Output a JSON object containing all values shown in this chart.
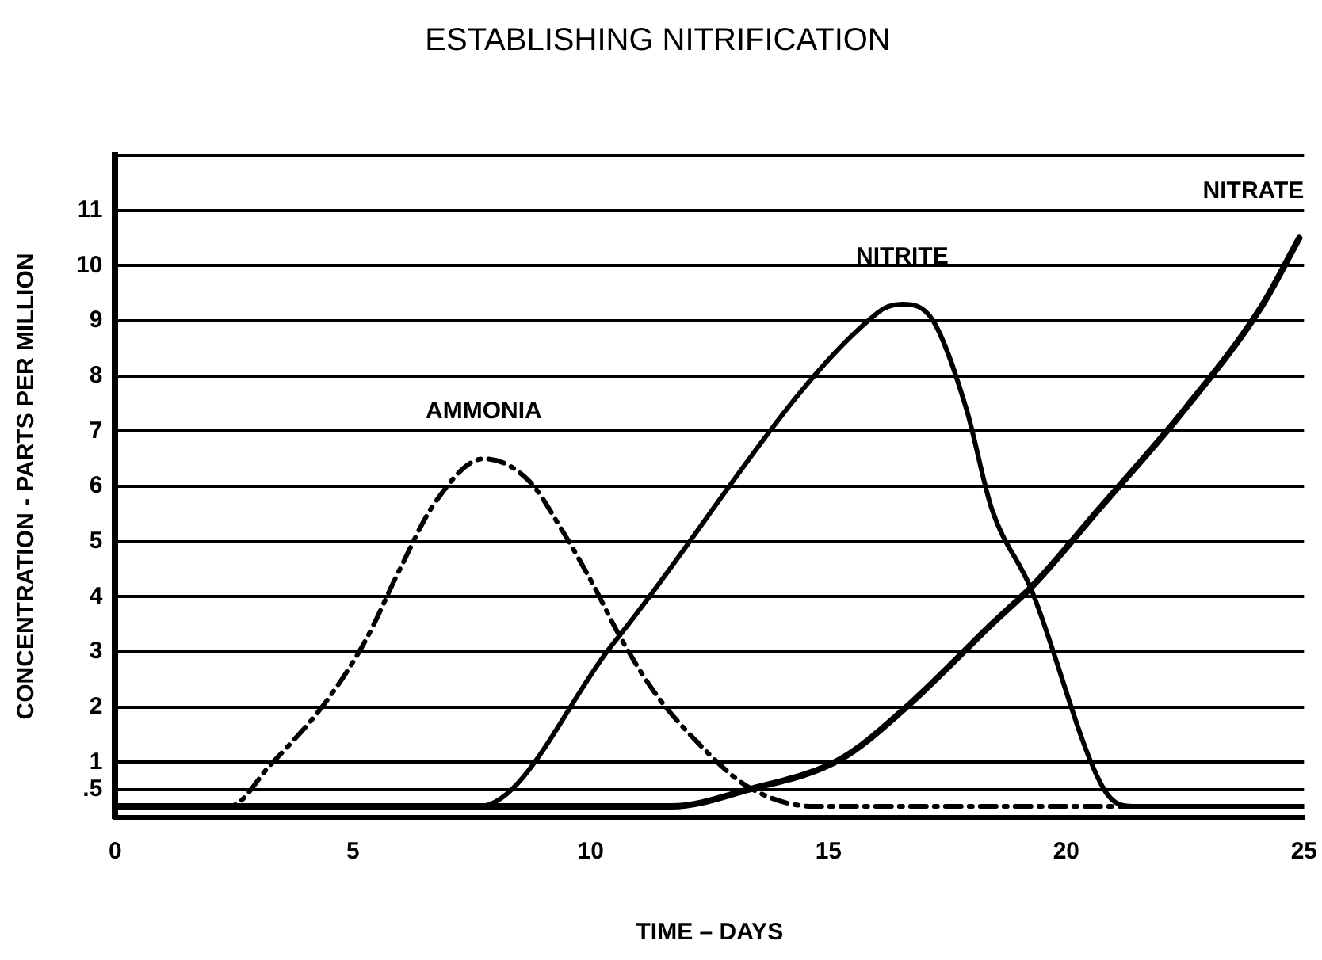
{
  "chart_data": {
    "type": "line",
    "title": "ESTABLISHING NITRIFICATION",
    "xlabel": "TIME – DAYS",
    "ylabel": "CONCENTRATION - PARTS PER MILLION",
    "series": [
      {
        "name": "AMMONIA",
        "color": "#000000",
        "line_style": "dashed",
        "x": [
          0,
          2.4,
          3.25,
          4.4,
          5.26,
          5.97,
          6.72,
          7.75,
          8.7,
          9.4,
          10.03,
          10.6,
          11.33,
          12.2,
          13.3,
          14.7,
          25
        ],
        "values": [
          0.2,
          0.2,
          0.94,
          2.06,
          3.2,
          4.47,
          5.7,
          6.5,
          6.1,
          5.2,
          4.25,
          3.3,
          2.28,
          1.4,
          0.56,
          0.2,
          0.2
        ]
      },
      {
        "name": "NITRITE",
        "color": "#000000",
        "line_style": "solid",
        "x": [
          0,
          7.65,
          10.48,
          16.04,
          16.55,
          17.2,
          17.9,
          18.43,
          19.25,
          20.8,
          21.4,
          25
        ],
        "values": [
          0.2,
          0.2,
          3.16,
          9.15,
          9.3,
          9.0,
          7.4,
          5.6,
          4.16,
          0.5,
          0.2,
          0.2
        ]
      },
      {
        "name": "NITRATE",
        "color": "#000000",
        "line_style": "solid",
        "x": [
          0,
          10,
          11.7,
          13.3,
          15.26,
          16.6,
          18.43,
          19.35,
          20.7,
          22.4,
          24.1,
          24.9
        ],
        "values": [
          0.2,
          0.2,
          0.2,
          0.5,
          1.06,
          1.97,
          3.5,
          4.25,
          5.6,
          7.3,
          9.25,
          10.5
        ]
      }
    ],
    "xlim": [
      0,
      25
    ],
    "xticks": [
      0,
      5,
      10,
      15,
      20,
      25
    ],
    "ylim": [
      0,
      12
    ],
    "yticks": [
      {
        "value": 0.5,
        "label": ".5"
      },
      1,
      2,
      3,
      4,
      5,
      6,
      7,
      8,
      9,
      10,
      11,
      {
        "value": 12,
        "label": null
      }
    ],
    "grid": "y",
    "legend": false,
    "marker": "none"
  }
}
